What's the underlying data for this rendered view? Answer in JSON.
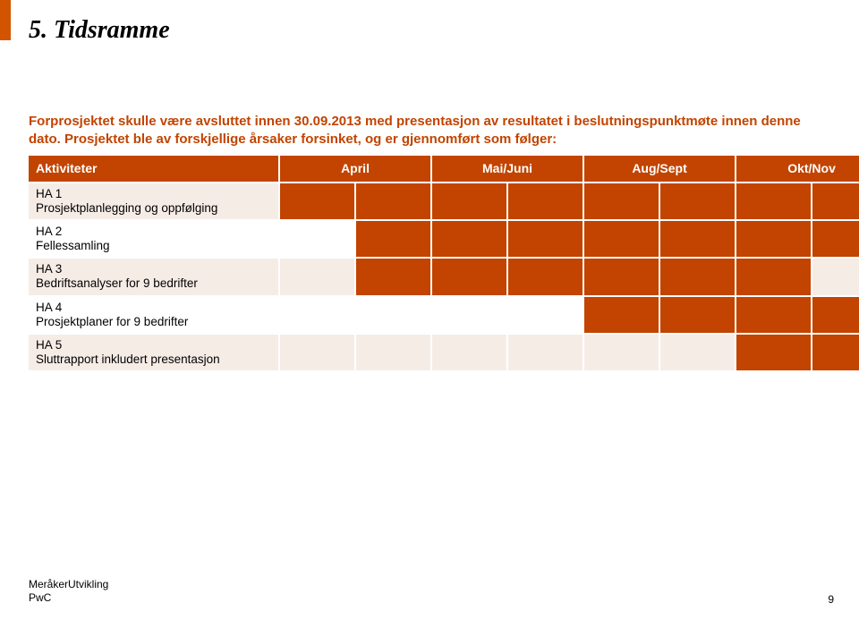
{
  "title": "5. Tidsramme",
  "intro": "Forprosjektet skulle være avsluttet innen 30.09.2013 med presentasjon av resultatet i beslutningspunktmøte innen denne dato. Prosjektet ble av forskjellige årsaker forsinket, og er gjennomført som følger:",
  "accent_color": "#c24400",
  "row_bg_odd": "#f6ece6",
  "row_bg_even": "#ffffff",
  "headers": {
    "activity": "Aktiviteter",
    "months": [
      "April",
      "Mai/Juni",
      "Aug/Sept",
      "Okt/Nov"
    ]
  },
  "subcols_per_month": 2,
  "rows": [
    {
      "label1": "HA 1",
      "label2": "Prosjektplanlegging og oppfølging",
      "cells": [
        1,
        1,
        1,
        1,
        1,
        1,
        1,
        1
      ]
    },
    {
      "label1": "HA 2",
      "label2": "Fellessamling",
      "cells": [
        0,
        1,
        1,
        1,
        1,
        1,
        1,
        1
      ]
    },
    {
      "label1": "HA 3",
      "label2": "Bedriftsanalyser  for 9 bedrifter",
      "cells": [
        0,
        1,
        1,
        1,
        1,
        1,
        1,
        0
      ]
    },
    {
      "label1": "HA 4",
      "label2": "Prosjektplaner for 9 bedrifter",
      "cells": [
        0,
        0,
        0,
        0,
        1,
        1,
        1,
        1
      ]
    },
    {
      "label1": "HA 5",
      "label2": "Sluttrapport inkludert presentasjon",
      "cells": [
        0,
        0,
        0,
        0,
        0,
        0,
        1,
        1
      ]
    }
  ],
  "footer_line1": "MeråkerUtvikling",
  "footer_line2": "PwC",
  "page_number": "9"
}
